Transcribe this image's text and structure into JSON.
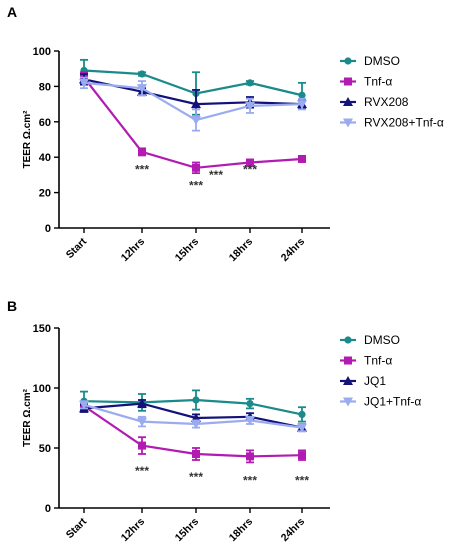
{
  "chart_data": [
    {
      "panel": "A",
      "type": "line",
      "ylabel": "TEER Ω.cm²",
      "ylim": [
        0,
        100
      ],
      "yticks": [
        0,
        20,
        40,
        60,
        80,
        100
      ],
      "categories": [
        "Start",
        "12hrs",
        "15hrs",
        "18hrs",
        "24hrs"
      ],
      "series": [
        {
          "name": "DMSO",
          "color": "#1a8a8a",
          "marker": "circle",
          "values": [
            89,
            87,
            76,
            82,
            75
          ],
          "errors": [
            6,
            1,
            12,
            1,
            7
          ]
        },
        {
          "name": "Tnf-α",
          "color": "#b21bb2",
          "marker": "square",
          "values": [
            85,
            43,
            34,
            37,
            39
          ],
          "errors": [
            3,
            2,
            3,
            1,
            1
          ]
        },
        {
          "name": "RVX208",
          "color": "#12127a",
          "marker": "triangle-up",
          "values": [
            84,
            77,
            70,
            71,
            70
          ],
          "errors": [
            3,
            2,
            8,
            3,
            2
          ]
        },
        {
          "name": "RVX208+Tnf-α",
          "color": "#9aabf0",
          "marker": "triangle-down",
          "values": [
            82,
            79,
            61,
            69,
            70
          ],
          "errors": [
            3,
            4,
            6,
            4,
            3
          ]
        }
      ],
      "significance": [
        {
          "x": "12hrs",
          "y": 33,
          "label": "***"
        },
        {
          "x": "15hrs",
          "y": 24,
          "label": "***"
        },
        {
          "x": "15hrs",
          "y": 30,
          "label": "***",
          "offset": 1
        },
        {
          "x": "18hrs",
          "y": 33,
          "label": "***"
        }
      ]
    },
    {
      "panel": "B",
      "type": "line",
      "ylabel": "TEER Ω.cm²",
      "ylim": [
        0,
        150
      ],
      "yticks": [
        0,
        50,
        100,
        150
      ],
      "categories": [
        "Start",
        "12hrs",
        "15hrs",
        "18hrs",
        "24hrs"
      ],
      "series": [
        {
          "name": "DMSO",
          "color": "#1a8a8a",
          "marker": "circle",
          "values": [
            89,
            88,
            90,
            87,
            78
          ],
          "errors": [
            8,
            7,
            8,
            4,
            6
          ]
        },
        {
          "name": "Tnf-α",
          "color": "#b21bb2",
          "marker": "square",
          "values": [
            85,
            52,
            45,
            43,
            44
          ],
          "errors": [
            3,
            7,
            5,
            5,
            4
          ]
        },
        {
          "name": "JQ1",
          "color": "#12127a",
          "marker": "triangle-up",
          "values": [
            83,
            87,
            75,
            76,
            67
          ],
          "errors": [
            3,
            3,
            3,
            3,
            3
          ]
        },
        {
          "name": "JQ1+Tnf-α",
          "color": "#9aabf0",
          "marker": "triangle-down",
          "values": [
            86,
            72,
            70,
            73,
            67
          ],
          "errors": [
            3,
            4,
            3,
            3,
            3
          ]
        }
      ],
      "significance": [
        {
          "x": "12hrs",
          "y": 31,
          "label": "***"
        },
        {
          "x": "15hrs",
          "y": 26,
          "label": "***"
        },
        {
          "x": "18hrs",
          "y": 23,
          "label": "***"
        },
        {
          "x": "24hrs",
          "y": 23,
          "label": "***"
        }
      ]
    }
  ]
}
